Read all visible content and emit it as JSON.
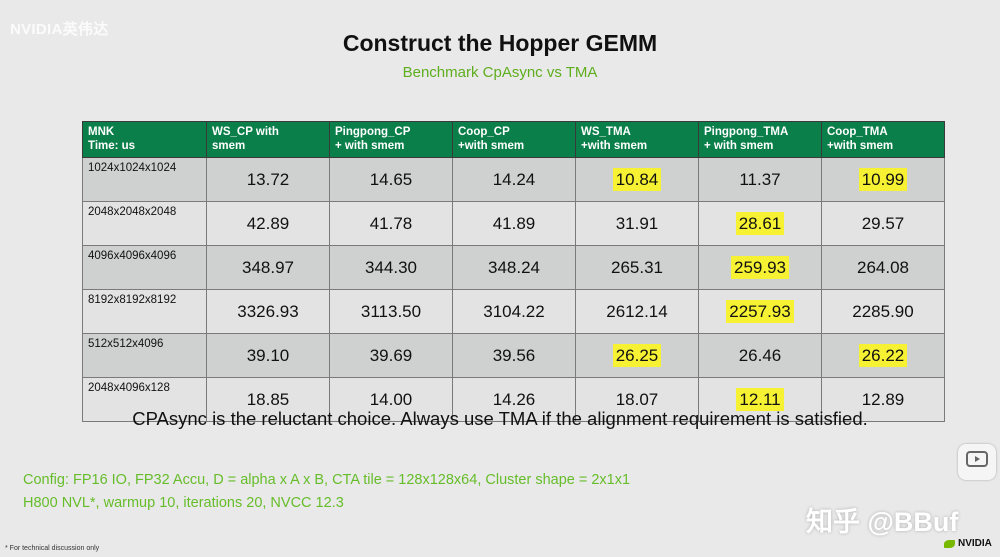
{
  "brand_top": "NVIDIA英伟达",
  "title": "Construct the Hopper GEMM",
  "subtitle": "Benchmark  CpAsync vs TMA",
  "table": {
    "headers": [
      [
        "MNK",
        "Time: us"
      ],
      [
        "WS_CP with",
        "smem"
      ],
      [
        "Pingpong_CP",
        "+ with smem"
      ],
      [
        "Coop_CP",
        "+with smem"
      ],
      [
        "WS_TMA",
        "+with smem"
      ],
      [
        "Pingpong_TMA",
        "+ with smem"
      ],
      [
        "Coop_TMA",
        "+with smem"
      ]
    ],
    "rows": [
      {
        "mnk": "1024x1024x1024",
        "values": [
          "13.72",
          "14.65",
          "14.24",
          "10.84",
          "11.37",
          "10.99"
        ],
        "highlight": [
          false,
          false,
          false,
          true,
          false,
          true
        ]
      },
      {
        "mnk": "2048x2048x2048",
        "values": [
          "42.89",
          "41.78",
          "41.89",
          "31.91",
          "28.61",
          "29.57"
        ],
        "highlight": [
          false,
          false,
          false,
          false,
          true,
          false
        ]
      },
      {
        "mnk": "4096x4096x4096",
        "values": [
          "348.97",
          "344.30",
          "348.24",
          "265.31",
          "259.93",
          "264.08"
        ],
        "highlight": [
          false,
          false,
          false,
          false,
          true,
          false
        ]
      },
      {
        "mnk": "8192x8192x8192",
        "values": [
          "3326.93",
          "3113.50",
          "3104.22",
          "2612.14",
          "2257.93",
          "2285.90"
        ],
        "highlight": [
          false,
          false,
          false,
          false,
          true,
          false
        ]
      },
      {
        "mnk": "512x512x4096",
        "values": [
          "39.10",
          "39.69",
          "39.56",
          "26.25",
          "26.46",
          "26.22"
        ],
        "highlight": [
          false,
          false,
          false,
          true,
          false,
          true
        ]
      },
      {
        "mnk": "2048x4096x128",
        "values": [
          "18.85",
          "14.00",
          "14.26",
          "18.07",
          "12.11",
          "12.89"
        ],
        "highlight": [
          false,
          false,
          false,
          false,
          true,
          false
        ]
      }
    ]
  },
  "note": "CPAsync is the reluctant choice. Always use TMA if the alignment requirement is satisfied.",
  "config_line1": "Config: FP16 IO, FP32 Accu, D = alpha x A x B, CTA tile = 128x128x64, Cluster shape = 2x1x1",
  "config_line2": "H800 NVL*, warmup 10, iterations 20, NVCC 12.3",
  "footnote": "* For technical discussion only",
  "watermark": "知乎 @BBuf",
  "logo_bottom": "NVIDIA",
  "colors": {
    "header_green": "#0b7f4a",
    "highlight_yellow": "#f6f233",
    "config_green": "#66bd2a"
  },
  "icons": {
    "play": "play-icon",
    "nvidia_logo": "nvidia-eye-icon"
  }
}
